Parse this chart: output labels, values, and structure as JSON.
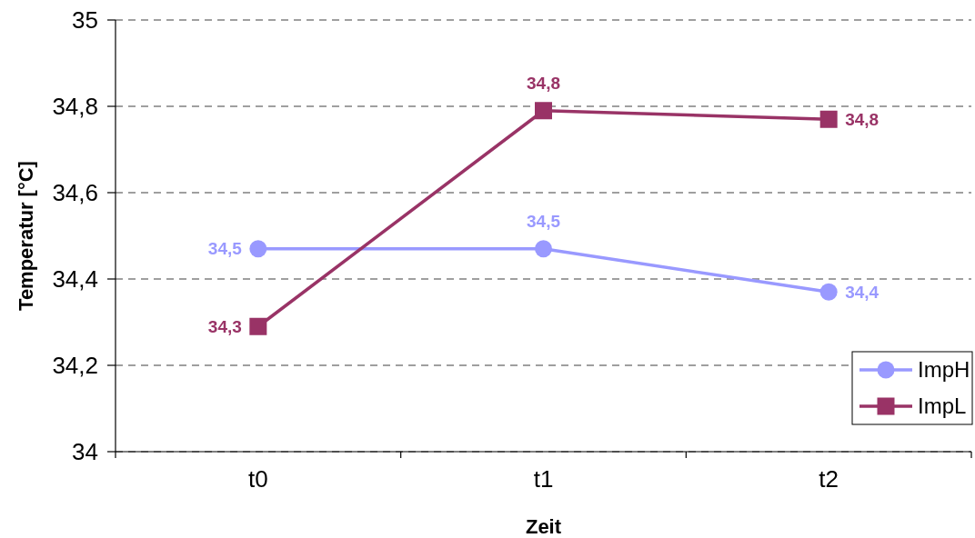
{
  "chart_data": {
    "type": "line",
    "xlabel": "Zeit",
    "ylabel": "Temperatur [°C]",
    "categories": [
      "t0",
      "t1",
      "t2"
    ],
    "series": [
      {
        "name": "ImpH",
        "color": "#9999ff",
        "marker": "circle",
        "values": [
          34.47,
          34.47,
          34.37
        ],
        "value_labels": [
          "34,5",
          "34,5",
          "34,4"
        ]
      },
      {
        "name": "ImpL",
        "color": "#993366",
        "marker": "square",
        "values": [
          34.29,
          34.79,
          34.77
        ],
        "value_labels": [
          "34,3",
          "34,8",
          "34,8"
        ]
      }
    ],
    "ylim": [
      34,
      35
    ],
    "yticks": [
      34,
      {
        "value": 34.2,
        "label": "34,2"
      },
      {
        "value": 34.4,
        "label": "34,4"
      },
      {
        "value": 34.6,
        "label": "34,6"
      },
      {
        "value": 34.8,
        "label": "34,8"
      },
      35
    ],
    "grid": "y",
    "legend": "bottom right"
  }
}
